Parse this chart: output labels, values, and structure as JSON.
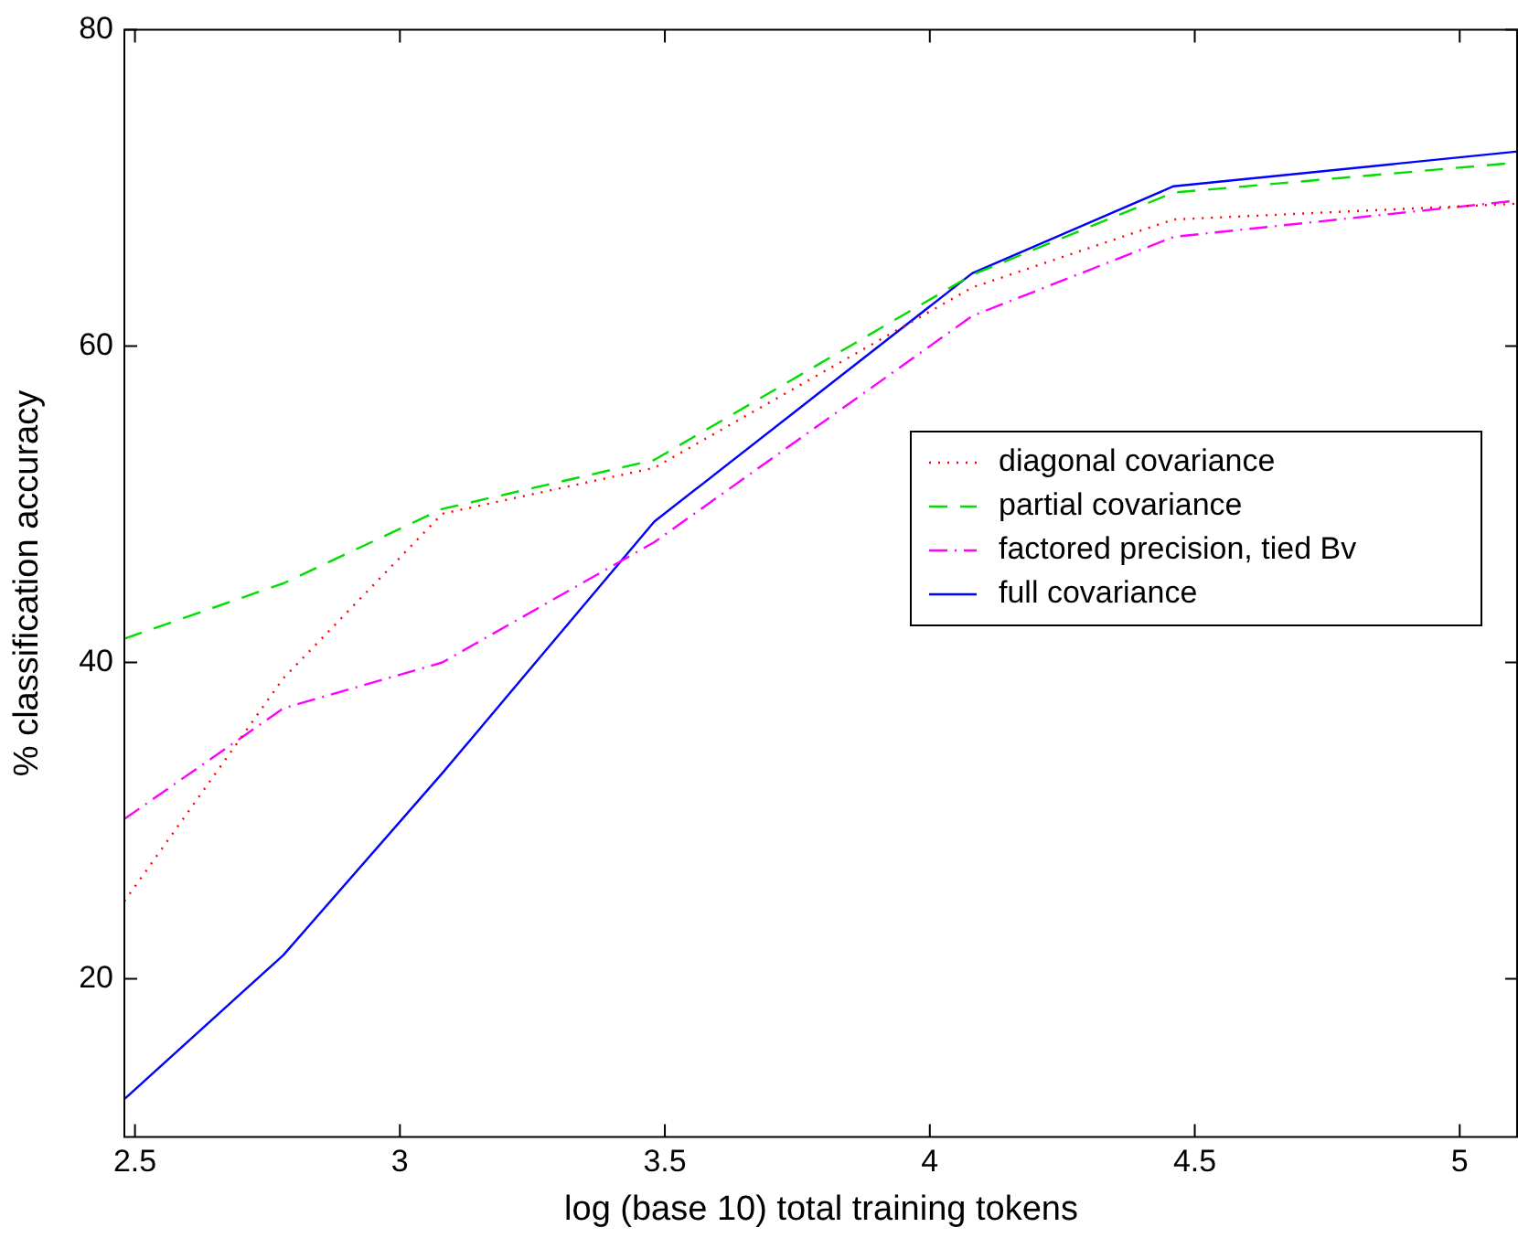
{
  "chart_data": {
    "type": "line",
    "xlabel": "log (base 10) total training tokens",
    "ylabel": "% classification accuracy",
    "x": [
      2.48,
      2.78,
      3.08,
      3.48,
      4.08,
      4.46,
      5.11
    ],
    "xlim": [
      2.48,
      5.11
    ],
    "xticks": [
      2.5,
      3,
      3.5,
      4,
      4.5,
      5
    ],
    "ylim": [
      10,
      80
    ],
    "yticks": [
      20,
      40,
      60,
      80
    ],
    "grid": false,
    "legend": "right",
    "marker": "none",
    "series": [
      {
        "name": "diagonal covariance",
        "color": "#ff0000",
        "line_style": "dotted",
        "values": [
          24.9,
          39,
          49.4,
          52.3,
          63.7,
          68.0,
          69.0
        ]
      },
      {
        "name": "partial covariance",
        "color": "#00dd00",
        "line_style": "dashed",
        "values": [
          41.5,
          45.0,
          49.7,
          52.8,
          64.5,
          69.7,
          71.6
        ]
      },
      {
        "name": "factored precision, tied Bv",
        "color": "#ff00ff",
        "line_style": "dashdot",
        "values": [
          30.1,
          37.1,
          40.0,
          47.6,
          61.9,
          66.9,
          69.2
        ]
      },
      {
        "name": "full covariance",
        "color": "#0000ff",
        "line_style": "solid",
        "values": [
          12.4,
          21.5,
          33.0,
          48.9,
          64.6,
          70.1,
          72.3
        ]
      }
    ]
  }
}
